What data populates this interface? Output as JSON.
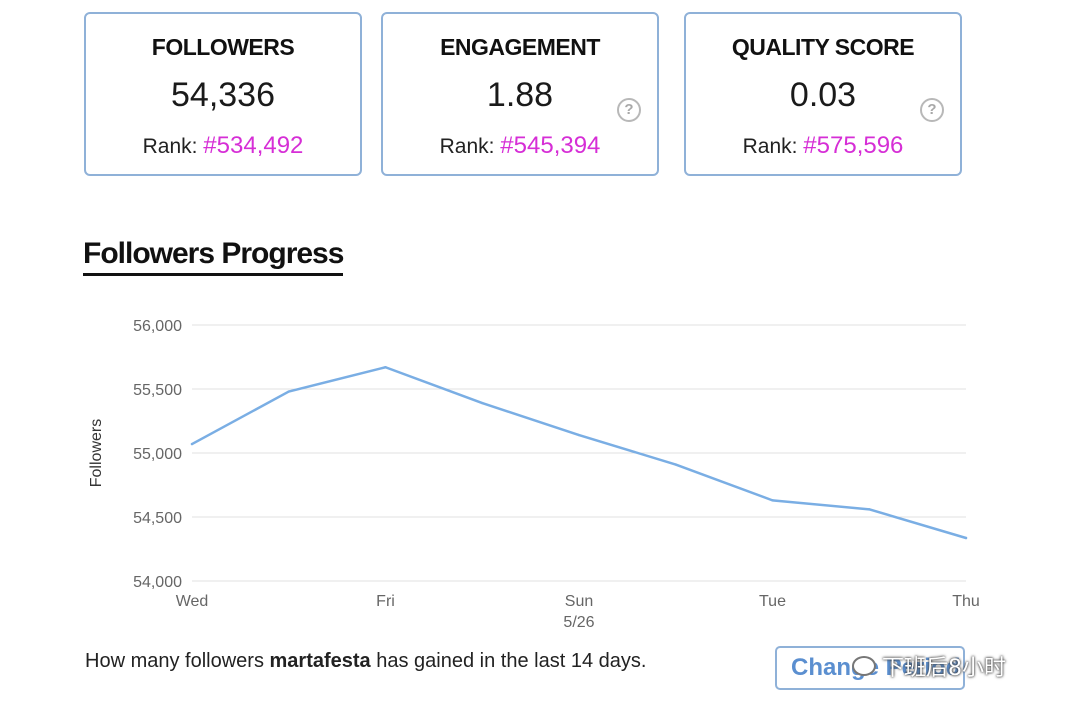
{
  "cards": [
    {
      "title": "FOLLOWERS",
      "value": "54,336",
      "rank_label": "Rank:",
      "rank_value": "#534,492",
      "help": ""
    },
    {
      "title": "ENGAGEMENT",
      "value": "1.88",
      "rank_label": "Rank:",
      "rank_value": "#545,394",
      "help": "?"
    },
    {
      "title": "QUALITY SCORE",
      "value": "0.03",
      "rank_label": "Rank:",
      "rank_value": "#575,596",
      "help": "?"
    }
  ],
  "section_title": "Followers Progress",
  "chart_data": {
    "type": "line",
    "title": "",
    "xlabel": "",
    "ylabel": "Followers",
    "ylim": [
      54000,
      56000
    ],
    "yticks": [
      "56,000",
      "55,500",
      "55,000",
      "54,500",
      "54,000"
    ],
    "ytick_values": [
      56000,
      55500,
      55000,
      54500,
      54000
    ],
    "xticks": [
      {
        "label": "Wed",
        "sub": "",
        "index": 0
      },
      {
        "label": "Fri",
        "sub": "",
        "index": 2
      },
      {
        "label": "Sun",
        "sub": "5/26",
        "index": 4
      },
      {
        "label": "Tue",
        "sub": "",
        "index": 6
      },
      {
        "label": "Thu",
        "sub": "",
        "index": 8
      }
    ],
    "x": [
      "Wed",
      "Thu",
      "Fri",
      "Sat",
      "Sun",
      "Mon",
      "Tue",
      "Wed",
      "Thu"
    ],
    "series": [
      {
        "values": [
          55070,
          55480,
          55670,
          55390,
          55140,
          54910,
          54630,
          54560,
          54336
        ]
      }
    ],
    "grid": true,
    "line_color": "#7aaee4"
  },
  "caption": {
    "prefix": "How many followers ",
    "user": "martafesta",
    "suffix": " has gained in the last 14 days."
  },
  "change_button_label": "Change Period",
  "watermark": "下班后8小时"
}
